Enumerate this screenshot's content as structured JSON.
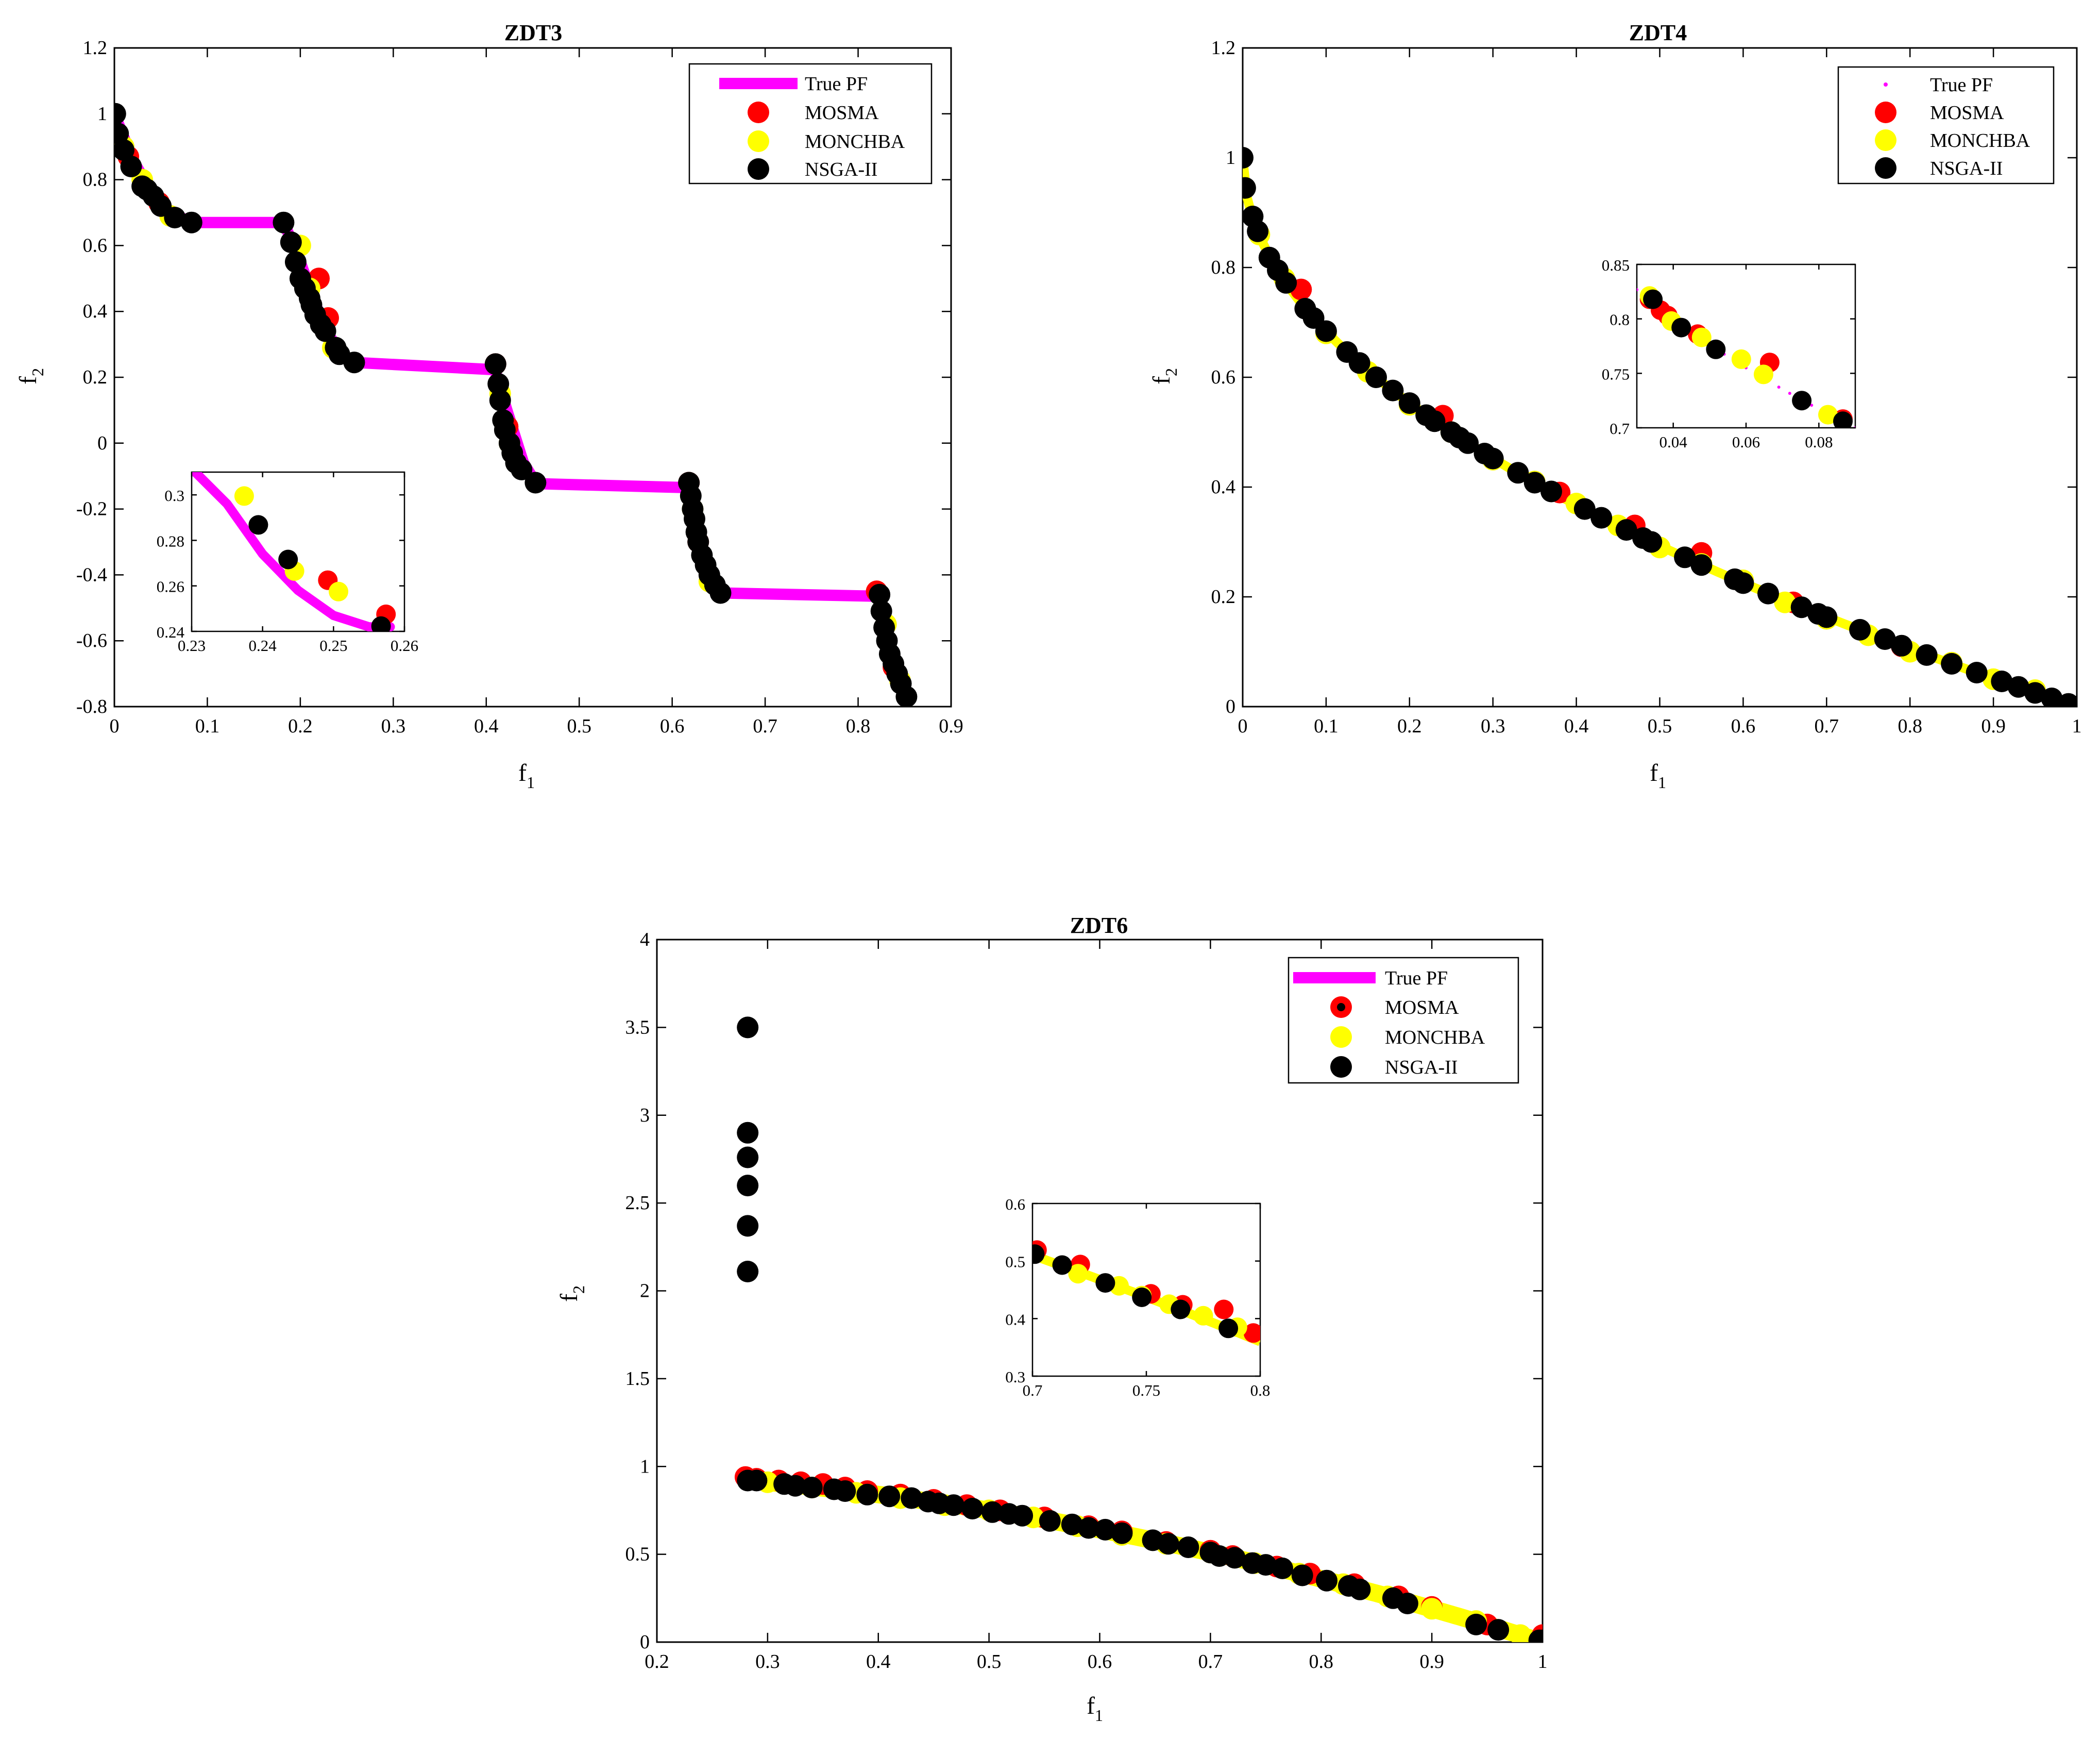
{
  "chart_data": [
    {
      "id": "zdt3",
      "type": "scatter",
      "title": "ZDT3",
      "xlabel": "f1",
      "ylabel": "f2",
      "xlim": [
        0,
        0.9
      ],
      "ylim": [
        -0.8,
        1.2
      ],
      "xticks": [
        "0",
        "0.1",
        "0.2",
        "0.3",
        "0.4",
        "0.5",
        "0.6",
        "0.7",
        "0.8",
        "0.9"
      ],
      "yticks": [
        "-0.8",
        "-0.6",
        "-0.4",
        "-0.2",
        "0",
        "0.2",
        "0.4",
        "0.6",
        "0.8",
        "1",
        "1.2"
      ],
      "legend": {
        "position": "top-right",
        "entries": [
          "True PF",
          "MOSMA",
          "MONCHBA",
          "NSGA-II"
        ]
      },
      "true_pf_style": "line",
      "true_pf_segments": [
        {
          "x": [
            0,
            0.02,
            0.04,
            0.06,
            0.083
          ],
          "y": [
            1,
            0.86,
            0.76,
            0.7,
            0.67
          ]
        },
        {
          "x": [
            0.083,
            0.1822
          ],
          "y": [
            0.67,
            0.67
          ]
        },
        {
          "x": [
            0.1822,
            0.2,
            0.215,
            0.23,
            0.245,
            0.2578
          ],
          "y": [
            0.67,
            0.55,
            0.43,
            0.33,
            0.27,
            0.245
          ]
        },
        {
          "x": [
            0.2578,
            0.4093
          ],
          "y": [
            0.245,
            0.223
          ]
        },
        {
          "x": [
            0.4093,
            0.42,
            0.43,
            0.44,
            0.4539
          ],
          "y": [
            0.223,
            0.12,
            0.03,
            -0.06,
            -0.123
          ]
        },
        {
          "x": [
            0.4539,
            0.6184
          ],
          "y": [
            -0.123,
            -0.135
          ]
        },
        {
          "x": [
            0.6184,
            0.625,
            0.632,
            0.64,
            0.6524
          ],
          "y": [
            -0.135,
            -0.25,
            -0.35,
            -0.42,
            -0.455
          ]
        },
        {
          "x": [
            0.6524,
            0.8233
          ],
          "y": [
            -0.455,
            -0.465
          ]
        },
        {
          "x": [
            0.8233,
            0.83,
            0.84,
            0.8518
          ],
          "y": [
            -0.465,
            -0.58,
            -0.7,
            -0.773
          ]
        }
      ],
      "true_pf_segments_alt": [],
      "series": [
        {
          "name": "MOSMA",
          "x": [
            0.015,
            0.048,
            0.22,
            0.23,
            0.41,
            0.423,
            0.618,
            0.628,
            0.82,
            0.838
          ],
          "y": [
            0.87,
            0.73,
            0.5,
            0.38,
            0.24,
            0.05,
            -0.12,
            -0.3,
            -0.45,
            -0.68
          ]
        },
        {
          "name": "MONCHBA",
          "x": [
            0.01,
            0.03,
            0.06,
            0.2,
            0.21,
            0.235,
            0.415,
            0.425,
            0.622,
            0.64,
            0.83,
            0.845
          ],
          "y": [
            0.9,
            0.8,
            0.69,
            0.6,
            0.47,
            0.29,
            0.15,
            0.0,
            -0.2,
            -0.42,
            -0.55,
            -0.72
          ]
        },
        {
          "name": "NSGA-II",
          "x": [
            0.001,
            0.004,
            0.01,
            0.018,
            0.03,
            0.035,
            0.042,
            0.05,
            0.065,
            0.083,
            0.182,
            0.19,
            0.195,
            0.2,
            0.205,
            0.21,
            0.212,
            0.216,
            0.222,
            0.227,
            0.238,
            0.242,
            0.258,
            0.41,
            0.413,
            0.415,
            0.418,
            0.42,
            0.425,
            0.428,
            0.432,
            0.438,
            0.453,
            0.618,
            0.62,
            0.622,
            0.624,
            0.626,
            0.628,
            0.632,
            0.636,
            0.64,
            0.646,
            0.652,
            0.823,
            0.825,
            0.828,
            0.831,
            0.834,
            0.838,
            0.842,
            0.846,
            0.852
          ],
          "y": [
            1.0,
            0.94,
            0.89,
            0.84,
            0.78,
            0.77,
            0.75,
            0.72,
            0.685,
            0.67,
            0.67,
            0.61,
            0.55,
            0.5,
            0.47,
            0.44,
            0.42,
            0.39,
            0.36,
            0.34,
            0.29,
            0.27,
            0.245,
            0.24,
            0.18,
            0.13,
            0.07,
            0.04,
            0.0,
            -0.03,
            -0.06,
            -0.08,
            -0.12,
            -0.12,
            -0.16,
            -0.2,
            -0.23,
            -0.27,
            -0.3,
            -0.34,
            -0.37,
            -0.4,
            -0.43,
            -0.455,
            -0.46,
            -0.51,
            -0.56,
            -0.6,
            -0.64,
            -0.67,
            -0.7,
            -0.73,
            -0.77
          ]
        }
      ],
      "inset": {
        "xlim": [
          0.23,
          0.26
        ],
        "ylim": [
          0.24,
          0.31
        ],
        "xticks": [
          "0.23",
          "0.24",
          "0.25",
          "0.26"
        ],
        "yticks": [
          "0.24",
          "0.26",
          "0.28",
          "0.3"
        ],
        "true_pf": {
          "x": [
            0.2305,
            0.235,
            0.24,
            0.245,
            0.25,
            0.255,
            0.258
          ],
          "y": [
            0.31,
            0.296,
            0.274,
            0.258,
            0.247,
            0.242,
            0.242
          ]
        },
        "series": [
          {
            "name": "MOSMA",
            "x": [
              0.2492,
              0.2574
            ],
            "y": [
              0.2625,
              0.2475
            ]
          },
          {
            "name": "MONCHBA",
            "x": [
              0.2374,
              0.2445,
              0.2507
            ],
            "y": [
              0.2995,
              0.2665,
              0.2575
            ]
          },
          {
            "name": "NSGA-II",
            "x": [
              0.2394,
              0.2436,
              0.2567
            ],
            "y": [
              0.2868,
              0.2716,
              0.2423
            ]
          }
        ]
      }
    },
    {
      "id": "zdt4",
      "type": "scatter",
      "title": "ZDT4",
      "xlabel": "f1",
      "ylabel": "f2",
      "xlim": [
        0,
        1
      ],
      "ylim": [
        0,
        1.2
      ],
      "xticks": [
        "0",
        "0.1",
        "0.2",
        "0.3",
        "0.4",
        "0.5",
        "0.6",
        "0.7",
        "0.8",
        "0.9",
        "1"
      ],
      "yticks": [
        "0",
        "0.2",
        "0.4",
        "0.6",
        "0.8",
        "1",
        "1.2"
      ],
      "legend": {
        "position": "top-right",
        "entries": [
          "True PF",
          "MOSMA",
          "MONCHBA",
          "NSGA-II"
        ]
      },
      "true_pf_style": "dots",
      "true_pf_curve": "1-sqrt",
      "series": [
        {
          "name": "MOSMA",
          "x": [
            0.07,
            0.24,
            0.38,
            0.47,
            0.55,
            0.66,
            0.79
          ],
          "y": [
            0.76,
            0.53,
            0.39,
            0.33,
            0.28,
            0.19,
            0.11
          ]
        },
        {
          "name": "MONCHBA",
          "x": [
            0.02,
            0.05,
            0.1,
            0.15,
            0.2,
            0.25,
            0.3,
            0.35,
            0.4,
            0.45,
            0.5,
            0.55,
            0.6,
            0.65,
            0.7,
            0.75,
            0.8,
            0.85,
            0.9,
            0.95
          ],
          "y": [
            0.86,
            0.78,
            0.68,
            0.61,
            0.55,
            0.5,
            0.45,
            0.41,
            0.37,
            0.33,
            0.29,
            0.26,
            0.23,
            0.19,
            0.16,
            0.13,
            0.1,
            0.08,
            0.05,
            0.03
          ]
        },
        {
          "name": "NSGA-II",
          "x": [
            0.0,
            0.003,
            0.012,
            0.018,
            0.032,
            0.042,
            0.052,
            0.075,
            0.085,
            0.1,
            0.125,
            0.14,
            0.16,
            0.18,
            0.2,
            0.22,
            0.23,
            0.25,
            0.26,
            0.27,
            0.29,
            0.3,
            0.33,
            0.35,
            0.37,
            0.41,
            0.43,
            0.46,
            0.48,
            0.49,
            0.53,
            0.55,
            0.59,
            0.6,
            0.63,
            0.67,
            0.69,
            0.7,
            0.74,
            0.77,
            0.79,
            0.82,
            0.85,
            0.88,
            0.91,
            0.93,
            0.95,
            0.97,
            0.99,
            1.0
          ],
          "y": [
            1.0,
            0.945,
            0.893,
            0.866,
            0.818,
            0.795,
            0.772,
            0.725,
            0.708,
            0.684,
            0.646,
            0.626,
            0.6,
            0.576,
            0.553,
            0.531,
            0.52,
            0.5,
            0.49,
            0.48,
            0.461,
            0.452,
            0.426,
            0.408,
            0.392,
            0.36,
            0.344,
            0.322,
            0.307,
            0.3,
            0.272,
            0.258,
            0.232,
            0.225,
            0.206,
            0.181,
            0.169,
            0.163,
            0.14,
            0.123,
            0.111,
            0.094,
            0.078,
            0.062,
            0.046,
            0.036,
            0.025,
            0.015,
            0.005,
            0.0
          ]
        }
      ],
      "inset": {
        "xlim": [
          0.03,
          0.09
        ],
        "ylim": [
          0.7,
          0.85
        ],
        "xticks": [
          "0.04",
          "0.06",
          "0.08"
        ],
        "yticks": [
          "0.7",
          "0.75",
          "0.8",
          "0.85"
        ],
        "series": [
          {
            "name": "MOSMA",
            "x": [
              0.0335,
              0.0365,
              0.0385,
              0.0467,
              0.0665,
              0.0866
            ],
            "y": [
              0.818,
              0.808,
              0.803,
              0.786,
              0.76,
              0.708
            ]
          },
          {
            "name": "MONCHBA",
            "x": [
              0.0335,
              0.0395,
              0.0478,
              0.0587,
              0.0648,
              0.0825
            ],
            "y": [
              0.821,
              0.798,
              0.783,
              0.763,
              0.749,
              0.712
            ]
          },
          {
            "name": "NSGA-II",
            "x": [
              0.0344,
              0.0422,
              0.0517,
              0.0753,
              0.0866
            ],
            "y": [
              0.818,
              0.792,
              0.772,
              0.725,
              0.706
            ]
          }
        ]
      }
    },
    {
      "id": "zdt6",
      "type": "scatter",
      "title": "ZDT6",
      "xlabel": "f1",
      "ylabel": "f2",
      "xlim": [
        0.2,
        1
      ],
      "ylim": [
        0,
        4
      ],
      "xticks": [
        "0.2",
        "0.3",
        "0.4",
        "0.5",
        "0.6",
        "0.7",
        "0.8",
        "0.9",
        "1"
      ],
      "yticks": [
        "0",
        "0.5",
        "1",
        "1.5",
        "2",
        "2.5",
        "3",
        "3.5",
        "4"
      ],
      "legend": {
        "position": "top-right",
        "entries": [
          "True PF",
          "MOSMA",
          "MONCHBA",
          "NSGA-II"
        ]
      },
      "true_pf_style": "line",
      "true_pf_curve": "1-x^2",
      "series": [
        {
          "name": "MOSMA",
          "x": [
            0.28,
            0.29,
            0.31,
            0.33,
            0.35,
            0.37,
            0.39,
            0.42,
            0.45,
            0.48,
            0.51,
            0.55,
            0.59,
            0.62,
            0.66,
            0.7,
            0.72,
            0.76,
            0.79,
            0.83,
            0.87,
            0.9,
            0.95,
            1.0
          ],
          "y": [
            0.94,
            0.93,
            0.92,
            0.91,
            0.9,
            0.88,
            0.86,
            0.84,
            0.81,
            0.78,
            0.75,
            0.71,
            0.66,
            0.63,
            0.57,
            0.52,
            0.49,
            0.43,
            0.39,
            0.33,
            0.26,
            0.2,
            0.1,
            0.04
          ]
        },
        {
          "name": "MONCHBA",
          "x": [
            0.3,
            0.34,
            0.38,
            0.42,
            0.46,
            0.5,
            0.54,
            0.58,
            0.62,
            0.66,
            0.7,
            0.74,
            0.78,
            0.82,
            0.86,
            0.9,
            0.94,
            0.98
          ],
          "y": [
            0.91,
            0.88,
            0.85,
            0.82,
            0.78,
            0.75,
            0.71,
            0.66,
            0.61,
            0.56,
            0.51,
            0.45,
            0.39,
            0.33,
            0.26,
            0.19,
            0.12,
            0.04
          ]
        },
        {
          "name": "NSGA-II",
          "x": [
            0.282,
            0.282,
            0.282,
            0.282,
            0.282,
            0.282,
            0.282,
            0.29,
            0.315,
            0.325,
            0.34,
            0.36,
            0.37,
            0.39,
            0.41,
            0.43,
            0.445,
            0.455,
            0.468,
            0.485,
            0.503,
            0.518,
            0.53,
            0.555,
            0.575,
            0.59,
            0.605,
            0.62,
            0.648,
            0.662,
            0.68,
            0.7,
            0.708,
            0.722,
            0.738,
            0.75,
            0.765,
            0.783,
            0.805,
            0.825,
            0.835,
            0.865,
            0.878,
            0.94,
            0.96,
            0.997,
            1.0
          ],
          "y": [
            3.5,
            2.9,
            2.76,
            2.6,
            2.37,
            2.11,
            0.92,
            0.92,
            0.9,
            0.89,
            0.88,
            0.87,
            0.86,
            0.84,
            0.83,
            0.82,
            0.8,
            0.79,
            0.78,
            0.76,
            0.74,
            0.73,
            0.72,
            0.69,
            0.67,
            0.65,
            0.64,
            0.62,
            0.58,
            0.56,
            0.54,
            0.51,
            0.49,
            0.48,
            0.45,
            0.44,
            0.42,
            0.38,
            0.35,
            0.32,
            0.3,
            0.25,
            0.22,
            0.1,
            0.07,
            0.01,
            0.01
          ]
        }
      ],
      "inset": {
        "xlim": [
          0.7,
          0.8
        ],
        "ylim": [
          0.3,
          0.6
        ],
        "xticks": [
          "0.7",
          "0.75",
          "0.8"
        ],
        "yticks": [
          "0.3",
          "0.4",
          "0.5",
          "0.6"
        ],
        "series": [
          {
            "name": "MOSMA",
            "x": [
              0.702,
              0.721,
              0.752,
              0.766,
              0.784,
              0.797
            ],
            "y": [
              0.519,
              0.494,
              0.443,
              0.424,
              0.416,
              0.375
            ]
          },
          {
            "name": "MONCHBA",
            "x": [
              0.72,
              0.738,
              0.748,
              0.76,
              0.775,
              0.79
            ],
            "y": [
              0.478,
              0.457,
              0.44,
              0.425,
              0.405,
              0.385
            ]
          },
          {
            "name": "NSGA-II",
            "x": [
              0.701,
              0.713,
              0.732,
              0.748,
              0.765,
              0.786
            ],
            "y": [
              0.512,
              0.493,
              0.462,
              0.437,
              0.416,
              0.383
            ]
          }
        ]
      }
    }
  ],
  "colors": {
    "true_pf": "#ff00ff",
    "mosma": "#ff0000",
    "monchba": "#ffff00",
    "nsga": "#000000"
  }
}
